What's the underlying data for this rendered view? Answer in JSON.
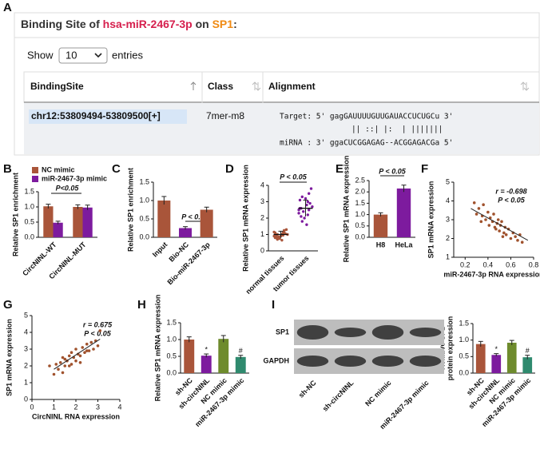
{
  "panel_a": {
    "letter": "A",
    "title_parts": [
      "Binding Site of ",
      "hsa-miR-2467-3p",
      " on ",
      "SP1",
      ":"
    ],
    "show": "Show",
    "length": "10",
    "entries": "entries",
    "columns": [
      "BindingSite",
      "Class",
      "Alignment"
    ],
    "row": {
      "site": "chr12:53809494-53809500[+]",
      "class": "7mer-m8",
      "alignment": [
        "Target: 5' gagGAUUUUGUUGAUACCUCUGCu 3'",
        "|| ::| |:  | |||||||",
        "miRNA : 3' ggaCUCGGAGAG--ACGGAGACGa 5'"
      ]
    }
  },
  "chart_data": [
    {
      "panel": "B",
      "type": "bar",
      "y_label": [
        "Relative SP1 enrichment"
      ],
      "categories": [
        "CircNINL-WT",
        "CircNINL-MUT"
      ],
      "series": [
        {
          "name": "NC mimic",
          "color": "#a9553a",
          "values": [
            1.02,
            1.0
          ],
          "errors": [
            0.07,
            0.07
          ]
        },
        {
          "name": "miR-2467-3p mimic",
          "color": "#7d1b9e",
          "values": [
            0.48,
            0.98
          ],
          "errors": [
            0.05,
            0.08
          ]
        }
      ],
      "ylim": [
        0,
        1.5
      ],
      "yticks": [
        {
          "value": 0,
          "label": "0.0"
        },
        {
          "value": 0.5,
          "label": "0.5"
        },
        {
          "value": 1,
          "label": "1.0"
        },
        {
          "value": 1.5,
          "label": "1.5"
        }
      ],
      "annotations": [
        "P<0.05"
      ]
    },
    {
      "panel": "C",
      "type": "bar",
      "y_label": [
        "Relative SP1 enrichment"
      ],
      "categories": [
        "Input",
        "Bio-NC",
        "Bio-miR-2467-3p"
      ],
      "values": [
        1.0,
        0.25,
        0.75
      ],
      "errors": [
        0.11,
        0.04,
        0.07
      ],
      "colors": [
        "#a9553a",
        "#7d1b9e",
        "#a9553a"
      ],
      "ylim": [
        0,
        1.5
      ],
      "yticks": [
        {
          "value": 0,
          "label": "0.0"
        },
        {
          "value": 0.5,
          "label": "0.5"
        },
        {
          "value": 1,
          "label": "1.0"
        },
        {
          "value": 1.5,
          "label": "1.5"
        }
      ],
      "annotations": [
        "P < 0.05"
      ]
    },
    {
      "panel": "D",
      "type": "strip",
      "y_label": [
        "Relative SP1 mRNA expression"
      ],
      "categories": [
        "normal tissues",
        "tumor tissues"
      ],
      "colors": [
        "#a9553a",
        "#7d1b9e"
      ],
      "points": [
        [
          0.9,
          1.0,
          0.8,
          1.1,
          0.95,
          1.2,
          0.7,
          1.05,
          0.85,
          1.3,
          0.75,
          1.0,
          0.9,
          1.15,
          0.65,
          1.1,
          0.95,
          0.8,
          1.25,
          1.0
        ],
        [
          2.5,
          2.8,
          3.1,
          2.2,
          2.6,
          3.5,
          1.8,
          2.9,
          2.4,
          3.8,
          2.0,
          2.7,
          3.2,
          2.3,
          1.6,
          2.6,
          3.0,
          2.1,
          2.5,
          3.3
        ]
      ],
      "means": [
        1.0,
        2.6
      ],
      "errors": [
        0.2,
        0.5
      ],
      "ylim": [
        0,
        4
      ],
      "yticks": [
        0,
        1,
        2,
        3,
        4
      ],
      "annotations": [
        "P < 0.05"
      ]
    },
    {
      "panel": "E",
      "type": "bar",
      "y_label": [
        "Relative SP1 mRNA expression"
      ],
      "categories": [
        "H8",
        "HeLa"
      ],
      "values": [
        1.0,
        2.15
      ],
      "errors": [
        0.08,
        0.15
      ],
      "colors": [
        "#a9553a",
        "#7d1b9e"
      ],
      "ylim": [
        0,
        2.5
      ],
      "yticks": [
        {
          "value": 0,
          "label": "0.0"
        },
        {
          "value": 0.5,
          "label": "0.5"
        },
        {
          "value": 1,
          "label": "1.0"
        },
        {
          "value": 1.5,
          "label": "1.5"
        },
        {
          "value": 2,
          "label": "2.0"
        },
        {
          "value": 2.5,
          "label": "2.5"
        }
      ],
      "annotations": [
        "P < 0.05"
      ]
    },
    {
      "panel": "F",
      "type": "scatter",
      "y_label": [
        "SP1 mRNA expression"
      ],
      "x_label": "miR-2467-3p RNA expression",
      "color": "#a0522d",
      "x": [
        0.28,
        0.3,
        0.32,
        0.35,
        0.36,
        0.38,
        0.4,
        0.41,
        0.42,
        0.44,
        0.45,
        0.46,
        0.48,
        0.49,
        0.5,
        0.51,
        0.52,
        0.54,
        0.55,
        0.56,
        0.58,
        0.6,
        0.62,
        0.64,
        0.66,
        0.68,
        0.7,
        0.34,
        0.47,
        0.53
      ],
      "values": [
        3.9,
        3.3,
        3.6,
        3.2,
        3.8,
        3.0,
        3.4,
        2.7,
        3.1,
        2.9,
        3.3,
        2.6,
        2.8,
        3.0,
        2.4,
        2.7,
        2.9,
        2.3,
        2.6,
        2.2,
        2.5,
        2.0,
        2.3,
        2.1,
        1.9,
        2.2,
        1.8,
        2.9,
        2.5,
        2.1
      ],
      "trend_line": {
        "x": [
          0.25,
          0.75
        ],
        "y": [
          3.6,
          1.9
        ]
      },
      "xlim": [
        0.1,
        0.8
      ],
      "xticks": [
        0.2,
        0.4,
        0.6,
        0.8
      ],
      "ylim": [
        1,
        5
      ],
      "yticks": [
        1,
        2,
        3,
        4,
        5
      ],
      "annotations": [
        "r = -0.698",
        "P < 0.05"
      ]
    },
    {
      "panel": "G",
      "type": "scatter",
      "y_label": [
        "SP1 mRNA expression"
      ],
      "x_label": "CircNINL RNA expression",
      "color": "#a0522d",
      "x": [
        0.8,
        1.0,
        1.1,
        1.2,
        1.3,
        1.4,
        1.5,
        1.5,
        1.6,
        1.7,
        1.8,
        1.8,
        1.9,
        2.0,
        2.0,
        2.1,
        2.2,
        2.3,
        2.4,
        2.5,
        2.6,
        2.7,
        2.8,
        2.9,
        3.0,
        3.1,
        1.4,
        2.2,
        2.5,
        1.7
      ],
      "values": [
        2.0,
        1.5,
        2.1,
        1.8,
        2.2,
        1.6,
        2.4,
        2.0,
        2.3,
        2.6,
        2.1,
        2.8,
        2.5,
        2.3,
        3.0,
        2.7,
        2.6,
        3.1,
        2.8,
        3.3,
        2.9,
        3.4,
        3.0,
        3.5,
        3.2,
        4.1,
        2.5,
        2.2,
        2.9,
        2.0
      ],
      "trend_line": {
        "x": [
          1.0,
          3.1
        ],
        "y": [
          1.8,
          3.6
        ]
      },
      "xlim": [
        0,
        4
      ],
      "xticks": [
        0,
        1,
        2,
        3,
        4
      ],
      "ylim": [
        0,
        5
      ],
      "yticks": [
        0,
        1,
        2,
        3,
        4,
        5
      ],
      "annotations": [
        "r = 0.675",
        "P < 0.05"
      ]
    },
    {
      "panel": "H",
      "type": "bar",
      "y_label": [
        "Relative SP1 mRNA expression"
      ],
      "categories": [
        "sh-NC",
        "sh-circNINL",
        "NC mimic",
        "miR-2467-3p mimic"
      ],
      "values": [
        1.0,
        0.52,
        1.02,
        0.48
      ],
      "errors": [
        0.08,
        0.05,
        0.1,
        0.05
      ],
      "colors": [
        "#a9553a",
        "#7d1b9e",
        "#6e8b2d",
        "#2f8a6e"
      ],
      "bar_labels": [
        null,
        "*",
        null,
        "#"
      ],
      "ylim": [
        0,
        1.5
      ],
      "yticks": [
        {
          "value": 0,
          "label": "0.0"
        },
        {
          "value": 0.5,
          "label": "0.5"
        },
        {
          "value": 1,
          "label": "1.0"
        },
        {
          "value": 1.5,
          "label": "1.5"
        }
      ]
    },
    {
      "panel": "I",
      "type": "bar",
      "y_label": [
        "Relative SP1",
        "protein expression"
      ],
      "categories": [
        "sh-NC",
        "sh-circNINL",
        "NC mimic",
        "miR-2467-3p mimic"
      ],
      "values": [
        0.88,
        0.55,
        0.92,
        0.48
      ],
      "errors": [
        0.08,
        0.04,
        0.07,
        0.06
      ],
      "colors": [
        "#a9553a",
        "#7d1b9e",
        "#6e8b2d",
        "#2f8a6e"
      ],
      "bar_labels": [
        null,
        "*",
        null,
        "#"
      ],
      "ylim": [
        0,
        1.5
      ],
      "yticks": [
        {
          "value": 0,
          "label": "0.0"
        },
        {
          "value": 0.5,
          "label": "0.5"
        },
        {
          "value": 1,
          "label": "1.0"
        },
        {
          "value": 1.5,
          "label": "1.5"
        }
      ],
      "blot": {
        "rows": [
          "SP1",
          "GAPDH"
        ],
        "lanes": [
          "sh-NC",
          "sh-circNINL",
          "NC mimic",
          "miR-2467-3p mimic"
        ]
      }
    }
  ]
}
